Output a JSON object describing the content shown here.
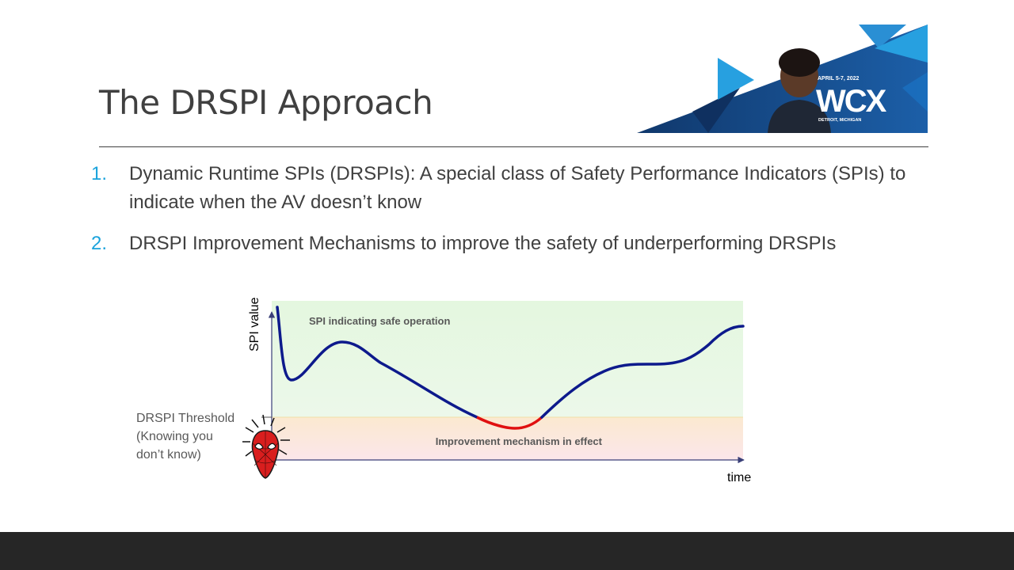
{
  "slide": {
    "title": "The DRSPI Approach",
    "bullets": [
      {
        "number": "1.",
        "text": "Dynamic Runtime SPIs (DRSPIs): A special class of Safety Performance Indicators (SPIs) to indicate when the AV doesn’t know"
      },
      {
        "number": "2.",
        "text": "DRSPI Improvement Mechanisms to improve the safety of underperforming DRSPIs"
      }
    ]
  },
  "banner": {
    "date": "APRIL 5-7, 2022",
    "logo": "WCX",
    "location": "DETROIT, MICHIGAN"
  },
  "diagram": {
    "y_axis_label": "SPI value",
    "x_axis_label": "time",
    "safe_zone_label": "SPI indicating safe operation",
    "improve_zone_label": "Improvement mechanism in effect",
    "threshold_label_lines": [
      "DRSPI Threshold",
      "(Knowing you",
      "don’t know)"
    ],
    "icon": "spider-man-head-icon",
    "colors": {
      "curve": "#0d1a8c",
      "below_threshold_curve": "#e01010",
      "safe_zone_top": "#e4f7df",
      "safe_zone_bottom": "#ecf8ea",
      "improve_zone_top": "#fbe9d0",
      "improve_zone_bottom": "#fbe6ea",
      "axis": "#3a3f78",
      "bullet_number": "#1aa3dc"
    }
  }
}
